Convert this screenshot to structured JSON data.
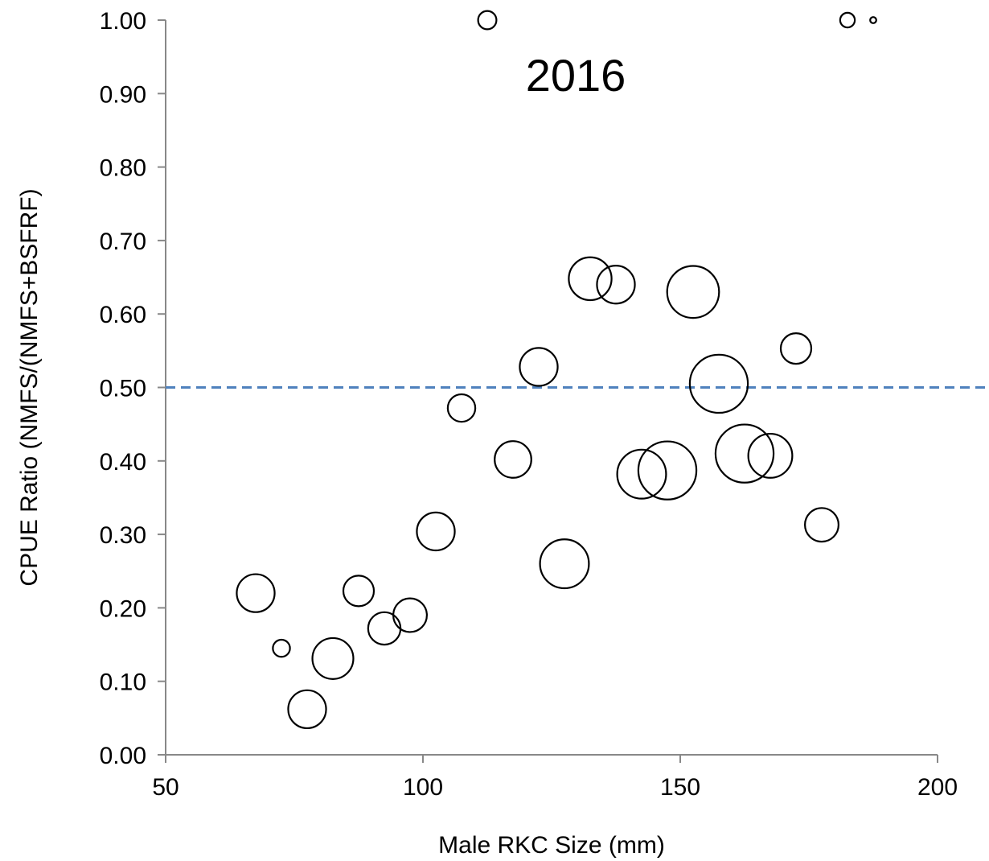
{
  "chart_data": {
    "type": "scatter",
    "annotation": "2016",
    "xlabel": "Male RKC Size (mm)",
    "ylabel": "CPUE Ratio (NMFS/(NMFS+BSFRF)",
    "xlim": [
      50,
      200
    ],
    "ylim": [
      0,
      1
    ],
    "x_ticks": [
      "50",
      "100",
      "150",
      "200"
    ],
    "y_ticks": [
      "0.00",
      "0.10",
      "0.20",
      "0.30",
      "0.40",
      "0.50",
      "0.60",
      "0.70",
      "0.80",
      "0.90",
      "1.00"
    ],
    "grid": false,
    "reference_line": {
      "y": 0.5,
      "style": "dashed",
      "color": "#4F81BD"
    },
    "marker_color": "#000000",
    "points": [
      {
        "x": 67.5,
        "y": 0.22,
        "size": 0.62
      },
      {
        "x": 72.5,
        "y": 0.145,
        "size": 0.28
      },
      {
        "x": 77.5,
        "y": 0.062,
        "size": 0.62
      },
      {
        "x": 82.5,
        "y": 0.131,
        "size": 0.67
      },
      {
        "x": 87.5,
        "y": 0.223,
        "size": 0.5
      },
      {
        "x": 92.5,
        "y": 0.172,
        "size": 0.53
      },
      {
        "x": 97.5,
        "y": 0.19,
        "size": 0.55
      },
      {
        "x": 102.5,
        "y": 0.304,
        "size": 0.62
      },
      {
        "x": 107.5,
        "y": 0.472,
        "size": 0.45
      },
      {
        "x": 112.5,
        "y": 1.0,
        "size": 0.3
      },
      {
        "x": 117.5,
        "y": 0.402,
        "size": 0.6
      },
      {
        "x": 122.5,
        "y": 0.528,
        "size": 0.62
      },
      {
        "x": 127.5,
        "y": 0.26,
        "size": 0.8
      },
      {
        "x": 132.5,
        "y": 0.648,
        "size": 0.7
      },
      {
        "x": 137.5,
        "y": 0.64,
        "size": 0.62
      },
      {
        "x": 142.5,
        "y": 0.382,
        "size": 0.8
      },
      {
        "x": 147.5,
        "y": 0.387,
        "size": 0.95
      },
      {
        "x": 152.5,
        "y": 0.63,
        "size": 0.85
      },
      {
        "x": 157.5,
        "y": 0.505,
        "size": 0.95
      },
      {
        "x": 162.5,
        "y": 0.41,
        "size": 0.95
      },
      {
        "x": 167.5,
        "y": 0.407,
        "size": 0.72
      },
      {
        "x": 172.5,
        "y": 0.553,
        "size": 0.5
      },
      {
        "x": 177.5,
        "y": 0.313,
        "size": 0.55
      },
      {
        "x": 182.5,
        "y": 1.0,
        "size": 0.24
      },
      {
        "x": 187.5,
        "y": 1.0,
        "size": 0.1
      }
    ]
  }
}
